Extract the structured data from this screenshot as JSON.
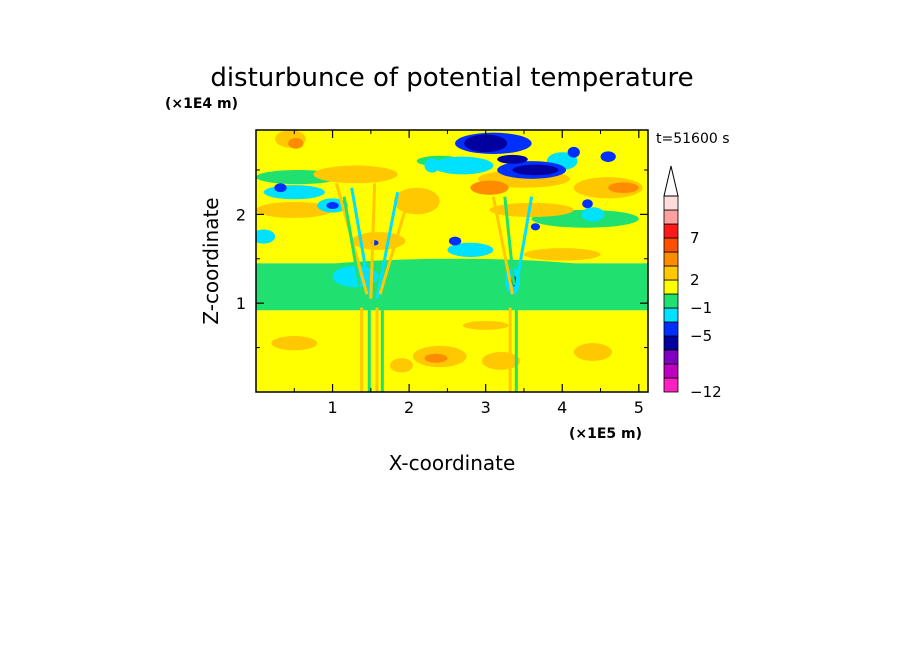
{
  "chart_data": {
    "type": "heatmap",
    "title": "disturbunce of potential temperature",
    "xlabel": "X-coordinate",
    "ylabel": "Z-coordinate",
    "x_unit": "(×1E5 m)",
    "y_unit": "(×1E4 m)",
    "time_label": "t=51600 s",
    "xlim": [
      0,
      5.12
    ],
    "ylim": [
      0,
      2.95
    ],
    "x_ticks": [
      1,
      2,
      3,
      4,
      5
    ],
    "y_ticks": [
      1,
      2
    ],
    "colorbar": {
      "labeled_ticks": [
        "7",
        "2",
        "−1",
        "−5",
        "−12"
      ],
      "levels": [
        {
          "color": "#ff20c0"
        },
        {
          "color": "#c000c0"
        },
        {
          "color": "#8000c0"
        },
        {
          "color": "#0000a0"
        },
        {
          "color": "#0030ff"
        },
        {
          "color": "#00e0ff"
        },
        {
          "color": "#20e070"
        },
        {
          "color": "#ffff00"
        },
        {
          "color": "#ffc800"
        },
        {
          "color": "#ff8c00"
        },
        {
          "color": "#ff5000"
        },
        {
          "color": "#ff1a1a"
        },
        {
          "color": "#ffa0a0"
        },
        {
          "color": "#ffdcdc"
        }
      ]
    },
    "regions": [
      {
        "shape": "rect",
        "x0": 0,
        "y0": 0,
        "x1": 5.12,
        "y1": 0.92,
        "color": "#ffff00"
      },
      {
        "shape": "rect",
        "x0": 0,
        "y0": 0.92,
        "x1": 5.12,
        "y1": 1.45,
        "color": "#20e070"
      },
      {
        "shape": "rect",
        "x0": 0,
        "y0": 1.45,
        "x1": 5.12,
        "y1": 2.95,
        "color": "#ffff00"
      },
      {
        "shape": "ellipse",
        "cx": 2.6,
        "cy": 1.22,
        "rx": 2.7,
        "ry": 0.28,
        "color": "#20e070"
      },
      {
        "shape": "ellipse",
        "cx": 0.55,
        "cy": 2.42,
        "rx": 0.55,
        "ry": 0.08,
        "color": "#20e070"
      },
      {
        "shape": "ellipse",
        "cx": 4.3,
        "cy": 1.95,
        "rx": 0.7,
        "ry": 0.1,
        "color": "#20e070"
      },
      {
        "shape": "ellipse",
        "cx": 2.4,
        "cy": 2.6,
        "rx": 0.3,
        "ry": 0.06,
        "color": "#20e070"
      },
      {
        "shape": "ellipse",
        "cx": 0.45,
        "cy": 2.85,
        "rx": 0.2,
        "ry": 0.1,
        "color": "#ffc800"
      },
      {
        "shape": "ellipse",
        "cx": 0.52,
        "cy": 2.8,
        "rx": 0.1,
        "ry": 0.06,
        "color": "#ff8c00"
      },
      {
        "shape": "ellipse",
        "cx": 0.5,
        "cy": 2.05,
        "rx": 0.5,
        "ry": 0.09,
        "color": "#ffc800"
      },
      {
        "shape": "ellipse",
        "cx": 4.6,
        "cy": 2.3,
        "rx": 0.45,
        "ry": 0.12,
        "color": "#ffc800"
      },
      {
        "shape": "ellipse",
        "cx": 4.8,
        "cy": 2.3,
        "rx": 0.2,
        "ry": 0.06,
        "color": "#ff8c00"
      },
      {
        "shape": "ellipse",
        "cx": 3.5,
        "cy": 2.4,
        "rx": 0.6,
        "ry": 0.1,
        "color": "#ffc800"
      },
      {
        "shape": "ellipse",
        "cx": 3.05,
        "cy": 2.3,
        "rx": 0.25,
        "ry": 0.08,
        "color": "#ff8c00"
      },
      {
        "shape": "ellipse",
        "cx": 3.6,
        "cy": 2.05,
        "rx": 0.55,
        "ry": 0.08,
        "color": "#ffc800"
      },
      {
        "shape": "ellipse",
        "cx": 1.3,
        "cy": 2.45,
        "rx": 0.55,
        "ry": 0.1,
        "color": "#ffc800"
      },
      {
        "shape": "ellipse",
        "cx": 2.1,
        "cy": 2.15,
        "rx": 0.3,
        "ry": 0.15,
        "color": "#ffc800"
      },
      {
        "shape": "ellipse",
        "cx": 1.6,
        "cy": 1.7,
        "rx": 0.35,
        "ry": 0.1,
        "color": "#ffc800"
      },
      {
        "shape": "ellipse",
        "cx": 4.0,
        "cy": 1.55,
        "rx": 0.5,
        "ry": 0.07,
        "color": "#ffc800"
      },
      {
        "shape": "ellipse",
        "cx": 2.4,
        "cy": 0.4,
        "rx": 0.35,
        "ry": 0.12,
        "color": "#ffc800"
      },
      {
        "shape": "ellipse",
        "cx": 2.35,
        "cy": 0.38,
        "rx": 0.15,
        "ry": 0.05,
        "color": "#ff8c00"
      },
      {
        "shape": "ellipse",
        "cx": 3.2,
        "cy": 0.35,
        "rx": 0.25,
        "ry": 0.1,
        "color": "#ffc800"
      },
      {
        "shape": "ellipse",
        "cx": 0.5,
        "cy": 0.55,
        "rx": 0.3,
        "ry": 0.08,
        "color": "#ffc800"
      },
      {
        "shape": "ellipse",
        "cx": 4.4,
        "cy": 0.45,
        "rx": 0.25,
        "ry": 0.1,
        "color": "#ffc800"
      },
      {
        "shape": "ellipse",
        "cx": 3.0,
        "cy": 0.75,
        "rx": 0.3,
        "ry": 0.05,
        "color": "#ffc800"
      },
      {
        "shape": "ellipse",
        "cx": 1.9,
        "cy": 0.3,
        "rx": 0.15,
        "ry": 0.08,
        "color": "#ffc800"
      },
      {
        "shape": "ellipse",
        "cx": 2.7,
        "cy": 2.55,
        "rx": 0.4,
        "ry": 0.1,
        "color": "#00e0ff"
      },
      {
        "shape": "ellipse",
        "cx": 2.3,
        "cy": 2.55,
        "rx": 0.1,
        "ry": 0.08,
        "color": "#00e0ff"
      },
      {
        "shape": "ellipse",
        "cx": 0.5,
        "cy": 2.25,
        "rx": 0.4,
        "ry": 0.08,
        "color": "#00e0ff"
      },
      {
        "shape": "ellipse",
        "cx": 1.0,
        "cy": 2.1,
        "rx": 0.2,
        "ry": 0.08,
        "color": "#00e0ff"
      },
      {
        "shape": "ellipse",
        "cx": 0.1,
        "cy": 1.75,
        "rx": 0.15,
        "ry": 0.08,
        "color": "#00e0ff"
      },
      {
        "shape": "ellipse",
        "cx": 2.8,
        "cy": 1.6,
        "rx": 0.3,
        "ry": 0.08,
        "color": "#00e0ff"
      },
      {
        "shape": "ellipse",
        "cx": 4.0,
        "cy": 2.6,
        "rx": 0.2,
        "ry": 0.1,
        "color": "#00e0ff"
      },
      {
        "shape": "ellipse",
        "cx": 4.4,
        "cy": 2.0,
        "rx": 0.15,
        "ry": 0.08,
        "color": "#00e0ff"
      },
      {
        "shape": "ellipse",
        "cx": 1.3,
        "cy": 1.3,
        "rx": 0.3,
        "ry": 0.12,
        "color": "#00e0ff"
      },
      {
        "shape": "ellipse",
        "cx": 3.35,
        "cy": 1.25,
        "rx": 0.1,
        "ry": 0.15,
        "color": "#00e0ff"
      },
      {
        "shape": "ellipse",
        "cx": 3.1,
        "cy": 2.8,
        "rx": 0.5,
        "ry": 0.12,
        "color": "#0030ff"
      },
      {
        "shape": "ellipse",
        "cx": 3.6,
        "cy": 2.5,
        "rx": 0.45,
        "ry": 0.1,
        "color": "#0030ff"
      },
      {
        "shape": "ellipse",
        "cx": 3.0,
        "cy": 2.8,
        "rx": 0.28,
        "ry": 0.1,
        "color": "#0000a0"
      },
      {
        "shape": "ellipse",
        "cx": 3.65,
        "cy": 2.5,
        "rx": 0.3,
        "ry": 0.06,
        "color": "#0000a0"
      },
      {
        "shape": "ellipse",
        "cx": 3.35,
        "cy": 2.62,
        "rx": 0.2,
        "ry": 0.05,
        "color": "#0000a0"
      },
      {
        "shape": "ellipse",
        "cx": 4.6,
        "cy": 2.65,
        "rx": 0.1,
        "ry": 0.06,
        "color": "#0030ff"
      },
      {
        "shape": "ellipse",
        "cx": 4.15,
        "cy": 2.7,
        "rx": 0.08,
        "ry": 0.06,
        "color": "#0030ff"
      },
      {
        "shape": "ellipse",
        "cx": 4.33,
        "cy": 2.12,
        "rx": 0.07,
        "ry": 0.05,
        "color": "#0030ff"
      },
      {
        "shape": "ellipse",
        "cx": 0.32,
        "cy": 2.3,
        "rx": 0.08,
        "ry": 0.05,
        "color": "#0030ff"
      },
      {
        "shape": "ellipse",
        "cx": 1.0,
        "cy": 2.1,
        "rx": 0.08,
        "ry": 0.04,
        "color": "#0030ff"
      },
      {
        "shape": "ellipse",
        "cx": 2.6,
        "cy": 1.7,
        "rx": 0.08,
        "ry": 0.05,
        "color": "#0030ff"
      },
      {
        "shape": "ellipse",
        "cx": 3.65,
        "cy": 1.86,
        "rx": 0.06,
        "ry": 0.04,
        "color": "#0030ff"
      },
      {
        "shape": "ellipse",
        "cx": 3.37,
        "cy": 1.25,
        "rx": 0.03,
        "ry": 0.06,
        "color": "#0000a0"
      },
      {
        "shape": "ellipse",
        "cx": 1.55,
        "cy": 1.68,
        "rx": 0.05,
        "ry": 0.03,
        "color": "#0030ff"
      }
    ],
    "streaks": [
      {
        "x0": 1.05,
        "y0": 2.35,
        "x1": 1.45,
        "y1": 1.1,
        "color": "#ffc800"
      },
      {
        "x0": 1.25,
        "y0": 2.3,
        "x1": 1.5,
        "y1": 1.05,
        "color": "#00e0ff"
      },
      {
        "x0": 1.55,
        "y0": 2.35,
        "x1": 1.5,
        "y1": 1.05,
        "color": "#ffc800"
      },
      {
        "x0": 1.85,
        "y0": 2.25,
        "x1": 1.58,
        "y1": 1.05,
        "color": "#00e0ff"
      },
      {
        "x0": 2.0,
        "y0": 2.2,
        "x1": 1.62,
        "y1": 1.1,
        "color": "#ffc800"
      },
      {
        "x0": 1.15,
        "y0": 2.2,
        "x1": 1.35,
        "y1": 1.2,
        "color": "#20e070"
      },
      {
        "x0": 3.1,
        "y0": 2.2,
        "x1": 3.35,
        "y1": 1.1,
        "color": "#ffc800"
      },
      {
        "x0": 3.6,
        "y0": 2.2,
        "x1": 3.38,
        "y1": 1.1,
        "color": "#00e0ff"
      },
      {
        "x0": 3.25,
        "y0": 2.2,
        "x1": 3.37,
        "y1": 1.2,
        "color": "#20e070"
      },
      {
        "x0": 1.38,
        "y0": 0.95,
        "x1": 1.38,
        "y1": 0.0,
        "color": "#ffc800"
      },
      {
        "x0": 1.48,
        "y0": 0.95,
        "x1": 1.48,
        "y1": 0.0,
        "color": "#20e070"
      },
      {
        "x0": 1.58,
        "y0": 0.95,
        "x1": 1.58,
        "y1": 0.0,
        "color": "#ffc800"
      },
      {
        "x0": 1.65,
        "y0": 0.95,
        "x1": 1.65,
        "y1": 0.0,
        "color": "#20e070"
      },
      {
        "x0": 3.32,
        "y0": 0.95,
        "x1": 3.32,
        "y1": 0.0,
        "color": "#ffc800"
      },
      {
        "x0": 3.4,
        "y0": 0.95,
        "x1": 3.4,
        "y1": 0.0,
        "color": "#20e070"
      }
    ]
  }
}
